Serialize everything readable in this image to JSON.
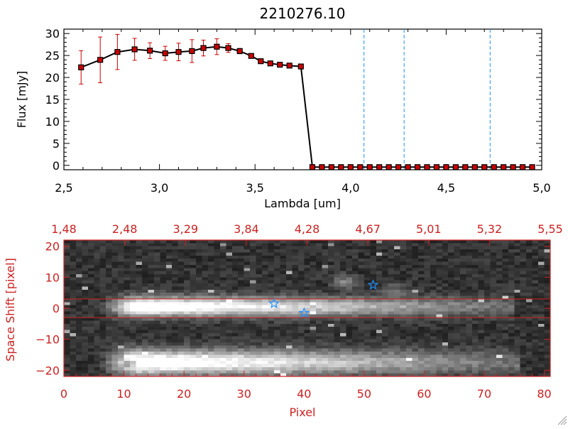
{
  "chart_data": [
    {
      "type": "line",
      "title": "2210276.10",
      "xlabel": "Lambda [um]",
      "ylabel": "Flux [mJy]",
      "xlim": [
        2.5,
        5.0
      ],
      "ylim": [
        -1,
        31
      ],
      "xticks": [
        "2.5",
        "3.0",
        "3.5",
        "4.0",
        "4.5",
        "5.0"
      ],
      "yticks": [
        "0",
        "5",
        "10",
        "15",
        "20",
        "25",
        "30"
      ],
      "colors": {
        "line": "#000000",
        "marker": "#cc0000",
        "errorbar": "#cc0000",
        "vline": "#1e90ff"
      },
      "vlines": [
        4.07,
        4.28,
        4.73
      ],
      "points": [
        {
          "x": 2.59,
          "y": 22.3,
          "err": 3.8
        },
        {
          "x": 2.69,
          "y": 24.0,
          "err": 5.2
        },
        {
          "x": 2.78,
          "y": 25.8,
          "err": 4.0
        },
        {
          "x": 2.87,
          "y": 26.4,
          "err": 2.5
        },
        {
          "x": 2.95,
          "y": 26.1,
          "err": 1.8
        },
        {
          "x": 3.03,
          "y": 25.5,
          "err": 1.6
        },
        {
          "x": 3.1,
          "y": 25.8,
          "err": 2.0
        },
        {
          "x": 3.17,
          "y": 26.0,
          "err": 2.6
        },
        {
          "x": 3.23,
          "y": 26.7,
          "err": 1.8
        },
        {
          "x": 3.3,
          "y": 27.0,
          "err": 1.8
        },
        {
          "x": 3.36,
          "y": 26.7,
          "err": 1.0
        },
        {
          "x": 3.42,
          "y": 26.0,
          "err": 0.6
        },
        {
          "x": 3.48,
          "y": 24.9,
          "err": 0.5
        },
        {
          "x": 3.53,
          "y": 23.7,
          "err": 0.4
        },
        {
          "x": 3.58,
          "y": 23.2,
          "err": 0.3
        },
        {
          "x": 3.63,
          "y": 22.9,
          "err": 0.3
        },
        {
          "x": 3.68,
          "y": 22.7,
          "err": 0.3
        },
        {
          "x": 3.74,
          "y": 22.5,
          "err": 0.3
        },
        {
          "x": 3.8,
          "y": -0.4,
          "err": 0
        },
        {
          "x": 3.85,
          "y": -0.4,
          "err": 0
        },
        {
          "x": 3.9,
          "y": -0.4,
          "err": 0
        },
        {
          "x": 3.95,
          "y": -0.4,
          "err": 0
        },
        {
          "x": 4.0,
          "y": -0.4,
          "err": 0
        },
        {
          "x": 4.05,
          "y": -0.4,
          "err": 0
        },
        {
          "x": 4.1,
          "y": -0.4,
          "err": 0
        },
        {
          "x": 4.15,
          "y": -0.4,
          "err": 0
        },
        {
          "x": 4.2,
          "y": -0.4,
          "err": 0
        },
        {
          "x": 4.25,
          "y": -0.4,
          "err": 0
        },
        {
          "x": 4.3,
          "y": -0.4,
          "err": 0
        },
        {
          "x": 4.35,
          "y": -0.4,
          "err": 0
        },
        {
          "x": 4.4,
          "y": -0.4,
          "err": 0
        },
        {
          "x": 4.45,
          "y": -0.4,
          "err": 0
        },
        {
          "x": 4.5,
          "y": -0.4,
          "err": 0
        },
        {
          "x": 4.55,
          "y": -0.4,
          "err": 0
        },
        {
          "x": 4.6,
          "y": -0.4,
          "err": 0
        },
        {
          "x": 4.65,
          "y": -0.4,
          "err": 0
        },
        {
          "x": 4.7,
          "y": -0.4,
          "err": 0
        },
        {
          "x": 4.75,
          "y": -0.4,
          "err": 0
        },
        {
          "x": 4.8,
          "y": -0.4,
          "err": 0
        },
        {
          "x": 4.85,
          "y": -0.4,
          "err": 0
        },
        {
          "x": 4.9,
          "y": -0.4,
          "err": 0
        },
        {
          "x": 4.95,
          "y": -0.4,
          "err": 0
        }
      ]
    },
    {
      "type": "heatmap",
      "xlabel": "Pixel",
      "ylabel": "Space Shift [pixel]",
      "xlim": [
        0,
        81
      ],
      "ylim": [
        -22,
        22
      ],
      "xticks": [
        "0",
        "10",
        "20",
        "30",
        "40",
        "50",
        "60",
        "70",
        "80"
      ],
      "yticks": [
        "-20",
        "-10",
        "0",
        "10",
        "20"
      ],
      "top_axis_labels": [
        "1.48",
        "2.48",
        "3.29",
        "3.84",
        "4.28",
        "4.67",
        "5.01",
        "5.32",
        "5.55"
      ],
      "colors": {
        "axis": "#cc2222",
        "star": "#1e90ff",
        "band": "#cc2222"
      },
      "band_rows": [
        -3,
        3
      ],
      "stars": [
        {
          "x": 35,
          "y": 1.5
        },
        {
          "x": 40,
          "y": -1.5
        },
        {
          "x": 51.5,
          "y": 7.5
        }
      ],
      "traces": [
        {
          "y": 0.5,
          "x_start": 8,
          "x_end": 75,
          "sigma": 2.2,
          "peak": 1.0
        },
        {
          "y": -17.5,
          "x_start": 8,
          "x_end": 76,
          "sigma": 2.8,
          "peak": 1.0
        }
      ],
      "blobs": [
        {
          "x": 47,
          "y": 8.5,
          "r": 3.5,
          "v": 0.35
        },
        {
          "x": 55,
          "y": 6.0,
          "r": 3.0,
          "v": 0.25
        },
        {
          "x": 11,
          "y": -18,
          "r": 1.0,
          "v": -1.0
        }
      ]
    }
  ]
}
